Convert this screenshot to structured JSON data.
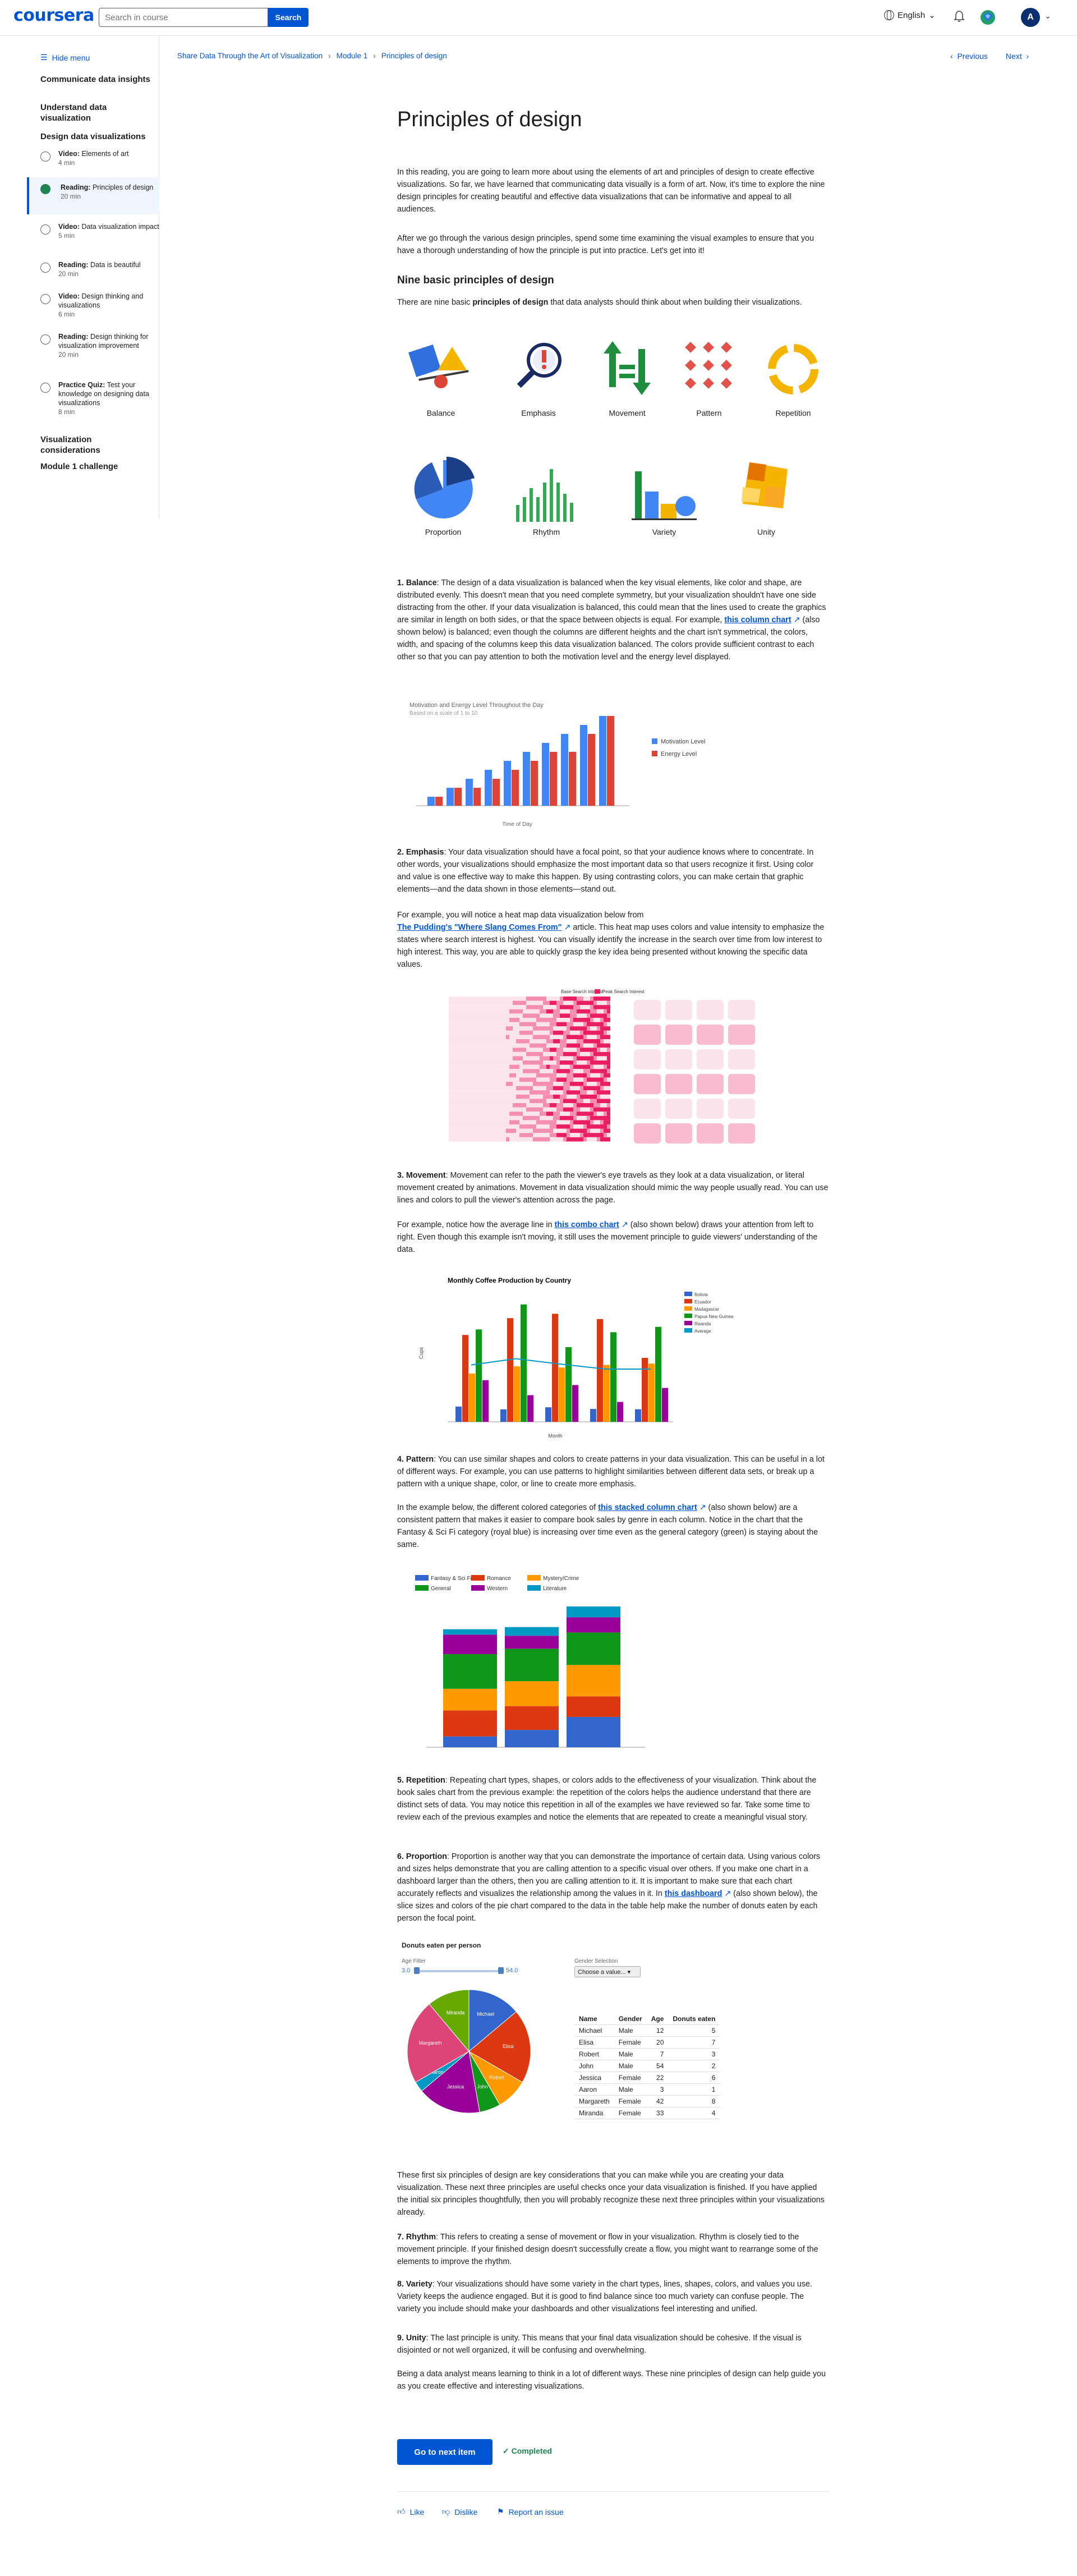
{
  "header": {
    "logo": "coursera",
    "search_placeholder": "Search in course",
    "search_button": "Search",
    "language": "English",
    "avatar": "A"
  },
  "sidebar": {
    "hide_menu": "Hide menu",
    "sections": [
      "Communicate data insights",
      "Understand data visualization",
      "Design data visualizations"
    ],
    "items": [
      {
        "type": "Video:",
        "title": "Elements of art",
        "dur": "4 min"
      },
      {
        "type": "Reading:",
        "title": "Principles of design",
        "dur": "20 min"
      },
      {
        "type": "Video:",
        "title": "Data visualization impact",
        "dur": "5 min"
      },
      {
        "type": "Reading:",
        "title": "Data is beautiful",
        "dur": "20 min"
      },
      {
        "type": "Video:",
        "title": "Design thinking and visualizations",
        "dur": "6 min"
      },
      {
        "type": "Reading:",
        "title": "Design thinking for visualization improvement",
        "dur": "20 min"
      },
      {
        "type": "Practice Quiz:",
        "title": "Test your knowledge on designing data visualizations",
        "dur": "8 min"
      }
    ],
    "after": [
      "Visualization considerations",
      "Module 1 challenge"
    ]
  },
  "breadcrumb": [
    "Share Data Through the Art of Visualization",
    "Module 1",
    "Principles of design"
  ],
  "nav": {
    "previous": "Previous",
    "next": "Next"
  },
  "page_title": "Principles of design",
  "intro1": "In this reading, you are going to learn more about using the elements of art and principles of design to create effective visualizations. So far, we have learned that communicating data visually is a form of art. Now, it's time to explore the nine design principles for creating beautiful and effective data visualizations that can be informative and appeal to all audiences.",
  "intro2": "After we go through the various design principles, spend some time examining the visual examples to ensure that you have a thorough understanding of how the principle is put into practice. Let's get into it!",
  "h_nine": "Nine basic principles of design",
  "nine_a": "There are nine basic ",
  "nine_b": "principles of design",
  "nine_c": " that data analysts should think about when building their visualizations.",
  "principles": [
    "Balance",
    "Emphasis",
    "Movement",
    "Pattern",
    "Repetition",
    "Proportion",
    "Rhythm",
    "Variety",
    "Unity"
  ],
  "balance": {
    "num": "1. Balance",
    "text": ": The design of a data visualization is balanced when the key visual elements, like color and shape, are distributed evenly. This doesn't mean that you need complete symmetry, but your visualization shouldn't have one side distracting from the other. If your data visualization is balanced, this could mean that the lines used to create the graphics are similar in length on both sides, or that the space between objects is equal. For example,",
    "link": "this column chart",
    "text2": "(also shown below) is balanced; even though the columns are different heights and the chart isn't symmetrical, the colors, width, and spacing of the columns keep this data visualization balanced. The colors provide sufficient contrast to each other so that you can pay attention to both the motivation level and the energy level displayed."
  },
  "balance_chart": {
    "title": "Motivation and Energy Level Throughout the Day",
    "subtitle": "Based on a scale of 1 to 10",
    "xlabel": "Time of Day",
    "legend": [
      "Motivation Level",
      "Energy Level"
    ]
  },
  "emphasis": {
    "num": "2. Emphasis",
    "text": ": Your data visualization should have a focal point, so that your audience knows where to concentrate. In other words, your visualizations should emphasize the most important data so that users recognize it first. Using color and value is one effective way to make this happen. By using contrasting colors, you can make certain that graphic elements—and the data shown in those elements—stand out.",
    "p2a": "For example, you will notice a heat map data visualization below from",
    "link": "The Pudding's \"Where Slang Comes From\"",
    "p2b": "article. This heat map uses colors and value intensity to emphasize the states where search interest is highest. You can visually identify the increase in the search over time from low interest to high interest. This way, you are able to quickly grasp the key idea being presented without knowing the specific data values."
  },
  "heatmap": {
    "legend_a": "Base Search Interest",
    "legend_b": "Peak Search Interest"
  },
  "movement": {
    "num": "3. Movement",
    "text": ": Movement can refer to the path the viewer's eye travels as they look at a data visualization, or literal movement created by animations. Movement in data visualization should mimic the way people usually read. You can use lines and colors to pull the viewer's attention across the page.",
    "p2a": "For example, notice how the average line in",
    "link": "this combo chart",
    "p2b": "(also shown below) draws your attention from left to right. Even though this example isn't moving, it still uses the movement principle to guide viewers' understanding of the data."
  },
  "combo": {
    "title": "Monthly Coffee Production by Country",
    "xlabel": "Month",
    "ylabel": "Cups",
    "legend": [
      "Bolivia",
      "Ecuador",
      "Madagascar",
      "Papua New Guinea",
      "Rwanda",
      "Average"
    ]
  },
  "pattern": {
    "num": "4. Pattern",
    "text": ": You can use similar shapes and colors to create patterns in your data visualization. This can be useful in a lot of different ways. For example, you can use patterns to highlight similarities between different data sets, or break up a pattern with a unique shape, color, or line to create more emphasis.",
    "p2a": "In the example below, the different colored categories of",
    "link": "this stacked column chart",
    "p2b": "(also shown below) are a consistent pattern that makes it easier to compare book sales by genre in each column. Notice in the chart that the Fantasy & Sci Fi category (royal blue) is increasing over time even as the general category (green) is staying about the same."
  },
  "stacked": {
    "legend": [
      "Fantasy & Sci Fi",
      "Romance",
      "Mystery/Crime",
      "General",
      "Western",
      "Literature"
    ]
  },
  "repetition": {
    "num": "5. Repetition",
    "text": ": Repeating chart types, shapes, or colors adds to the effectiveness of your visualization. Think about the book sales chart from the previous example: the repetition of the colors helps the audience understand that there are distinct sets of data. You may notice this repetition in all of the examples we have reviewed so far. Take some time to review each of the previous examples and notice the elements that are repeated to create a meaningful visual story."
  },
  "proportion": {
    "num": "6. Proportion",
    "text": ": Proportion is another way that you can demonstrate the importance of certain data. Using various colors and sizes helps demonstrate that you are calling attention to a specific visual over others. If you make one chart in a dashboard larger than the others, then you are calling attention to it. It is important to make sure that each chart accurately reflects and visualizes the relationship among the values in it. In",
    "link": "this dashboard",
    "text2": "(also shown below), the slice sizes and colors of the pie chart compared to the data in the table help make the number of donuts eaten by each person the focal point."
  },
  "donut": {
    "title": "Donuts eaten per person",
    "age_filter": "Age Filter",
    "min": "3.0",
    "max": "54.0",
    "gender_sel": "Gender Selection",
    "choose": "Choose a value...",
    "headers": [
      "Name",
      "Gender",
      "Age",
      "Donuts eaten"
    ],
    "rows": [
      [
        "Michael",
        "Male",
        "12",
        "5"
      ],
      [
        "Elisa",
        "Female",
        "20",
        "7"
      ],
      [
        "Robert",
        "Male",
        "7",
        "3"
      ],
      [
        "John",
        "Male",
        "54",
        "2"
      ],
      [
        "Jessica",
        "Female",
        "22",
        "6"
      ],
      [
        "Aaron",
        "Male",
        "3",
        "1"
      ],
      [
        "Margareth",
        "Female",
        "42",
        "8"
      ],
      [
        "Miranda",
        "Female",
        "33",
        "4"
      ]
    ]
  },
  "closing1": "These first six principles of design are key considerations that you can make while you are creating your data visualization. These next three principles are useful checks once your data visualization is finished. If you have applied the initial six principles thoughtfully, then you will probably recognize these next three principles within your visualizations already.",
  "rhythm": {
    "num": "7. Rhythm",
    "text": ": This refers to creating a sense of movement or flow in your visualization. Rhythm is closely tied to the movement principle. If your finished design doesn't successfully create a flow, you might want to rearrange some of the elements to improve the rhythm."
  },
  "variety": {
    "num": "8. Variety",
    "text": ": Your visualizations should have some variety in the chart types, lines, shapes, colors, and values you use. Variety keeps the audience engaged. But it is good to find balance since too much variety can confuse people. The variety you include should make your dashboards and other visualizations feel interesting and unified."
  },
  "unity": {
    "num": "9. Unity",
    "text": ": The last principle is unity. This means that your final data visualization should be cohesive. If the visual is disjointed or not well organized, it will be confusing and overwhelming."
  },
  "closing2": "Being a data analyst means learning to think in a lot of different ways. These nine principles of design can help guide you as you create effective and interesting visualizations.",
  "next_button": "Go to next item",
  "completed": "Completed",
  "feedback": [
    "Like",
    "Dislike",
    "Report an issue"
  ]
}
